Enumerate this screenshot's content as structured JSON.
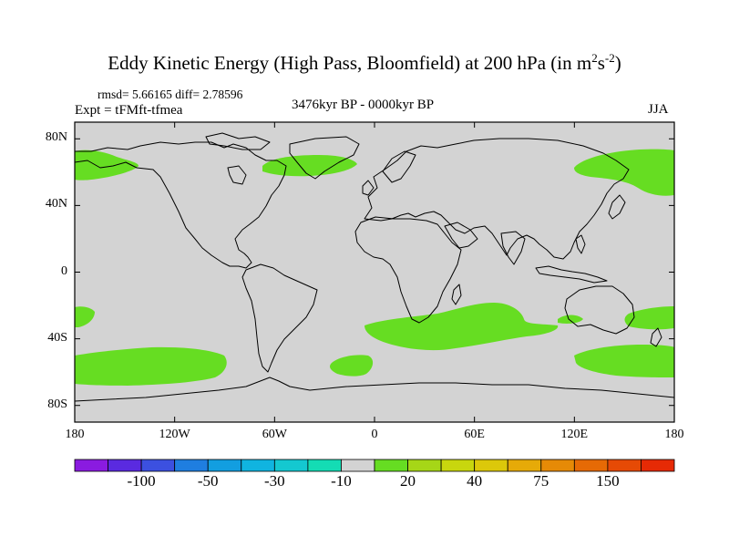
{
  "title": {
    "main": "Eddy Kinetic Energy (High Pass, Bloomfield) at 200 hPa (in m",
    "sup1": "2",
    "mid": "s",
    "sup2": "-2",
    "end": ")"
  },
  "stats": "rmsd= 5.66165 diff= 2.78596",
  "expt": "Expt = tFMft-tfmea",
  "period": "3476kyr BP - 0000kyr BP",
  "season": "JJA",
  "map": {
    "land_color": "#d3d3d3",
    "positive_fill": "#66dd22",
    "lat_ticks": [
      {
        "label": "80N",
        "lat": 80
      },
      {
        "label": "40N",
        "lat": 40
      },
      {
        "label": "0",
        "lat": 0
      },
      {
        "label": "40S",
        "lat": -40
      },
      {
        "label": "80S",
        "lat": -80
      }
    ],
    "lon_ticks": [
      {
        "label": "180",
        "lon": -180
      },
      {
        "label": "120W",
        "lon": -120
      },
      {
        "label": "60W",
        "lon": -60
      },
      {
        "label": "0",
        "lon": 0
      },
      {
        "label": "60E",
        "lon": 60
      },
      {
        "label": "120E",
        "lon": 120
      },
      {
        "label": "180",
        "lon": 180
      }
    ]
  },
  "colorbar": {
    "colors": [
      "#8a1be0",
      "#5a2ae0",
      "#3c50e0",
      "#1f7ee0",
      "#129ee0",
      "#10b4e0",
      "#14c8d0",
      "#14dcb4",
      "#d3d3d3",
      "#66dd22",
      "#a6d617",
      "#c8d60e",
      "#dcc80a",
      "#e6aa08",
      "#e68a06",
      "#e66a05",
      "#e64a05",
      "#e62a05"
    ],
    "labels": [
      {
        "text": "-100",
        "index": 2
      },
      {
        "text": "-50",
        "index": 4
      },
      {
        "text": "-30",
        "index": 6
      },
      {
        "text": "-10",
        "index": 8
      },
      {
        "text": "20",
        "index": 10
      },
      {
        "text": "40",
        "index": 12
      },
      {
        "text": "75",
        "index": 14
      },
      {
        "text": "150",
        "index": 16
      }
    ]
  }
}
